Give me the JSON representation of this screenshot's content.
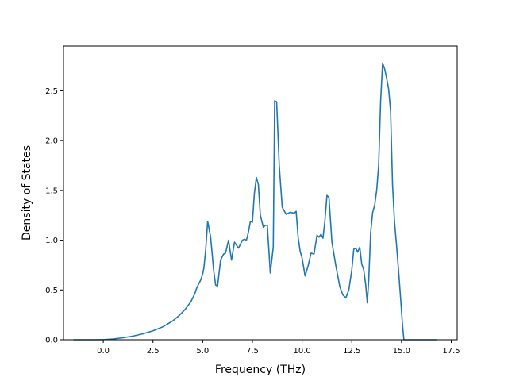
{
  "chart_data": {
    "type": "line",
    "title": "",
    "xlabel": "Frequency (THz)",
    "ylabel": "Density of States",
    "xlim": [
      -2.0,
      17.8
    ],
    "ylim": [
      0.0,
      2.95
    ],
    "grid": false,
    "xticks": [
      0.0,
      2.5,
      5.0,
      7.5,
      10.0,
      12.5,
      15.0,
      17.5
    ],
    "xtick_labels": [
      "0.0",
      "2.5",
      "5.0",
      "7.5",
      "10.0",
      "12.5",
      "15.0",
      "17.5"
    ],
    "yticks": [
      0.0,
      0.5,
      1.0,
      1.5,
      2.0,
      2.5
    ],
    "ytick_labels": [
      "0.0",
      "0.5",
      "1.0",
      "1.5",
      "2.0",
      "2.5"
    ],
    "line_color": "#1f77b4",
    "series": [
      {
        "x": [
          -1.5,
          -0.5,
          0.0,
          0.5,
          1.0,
          1.5,
          2.0,
          2.5,
          3.0,
          3.5,
          3.8,
          4.1,
          4.4,
          4.6,
          4.7,
          4.9,
          5.0,
          5.06,
          5.15,
          5.25,
          5.4,
          5.55,
          5.65,
          5.75,
          5.9,
          6.05,
          6.15,
          6.3,
          6.45,
          6.6,
          6.8,
          7.0,
          7.1,
          7.2,
          7.3,
          7.4,
          7.5,
          7.6,
          7.7,
          7.8,
          7.9,
          8.05,
          8.15,
          8.25,
          8.4,
          8.55,
          8.62,
          8.72,
          8.85,
          9.0,
          9.2,
          9.4,
          9.6,
          9.7,
          9.8,
          9.9,
          10.0,
          10.15,
          10.3,
          10.45,
          10.6,
          10.75,
          10.85,
          10.95,
          11.05,
          11.15,
          11.25,
          11.35,
          11.5,
          11.7,
          11.9,
          12.05,
          12.2,
          12.35,
          12.5,
          12.6,
          12.7,
          12.8,
          12.9,
          13.0,
          13.1,
          13.2,
          13.28,
          13.35,
          13.45,
          13.55,
          13.65,
          13.75,
          13.85,
          13.95,
          14.05,
          14.15,
          14.25,
          14.35,
          14.45,
          14.55,
          14.65,
          14.75,
          14.85,
          14.95,
          15.05,
          15.12,
          15.2,
          16.0,
          16.8
        ],
        "y": [
          0.0,
          0.0,
          0.001,
          0.008,
          0.02,
          0.037,
          0.06,
          0.09,
          0.13,
          0.19,
          0.24,
          0.3,
          0.38,
          0.46,
          0.52,
          0.6,
          0.66,
          0.72,
          0.9,
          1.19,
          1.03,
          0.7,
          0.55,
          0.54,
          0.8,
          0.86,
          0.87,
          1.0,
          0.8,
          0.98,
          0.92,
          1.0,
          1.01,
          1.0,
          1.08,
          1.19,
          1.18,
          1.47,
          1.63,
          1.56,
          1.25,
          1.13,
          1.15,
          1.15,
          0.67,
          0.93,
          2.4,
          2.39,
          1.75,
          1.33,
          1.26,
          1.28,
          1.27,
          1.29,
          1.03,
          0.89,
          0.82,
          0.64,
          0.74,
          0.87,
          0.86,
          1.05,
          1.03,
          1.06,
          1.02,
          1.2,
          1.45,
          1.43,
          0.98,
          0.74,
          0.53,
          0.45,
          0.42,
          0.5,
          0.7,
          0.91,
          0.92,
          0.88,
          0.93,
          0.76,
          0.7,
          0.55,
          0.37,
          0.6,
          1.08,
          1.28,
          1.35,
          1.5,
          1.75,
          2.4,
          2.78,
          2.72,
          2.63,
          2.52,
          2.3,
          1.55,
          1.18,
          0.95,
          0.7,
          0.43,
          0.15,
          0.0,
          0.0,
          0.0,
          0.0
        ]
      }
    ]
  }
}
